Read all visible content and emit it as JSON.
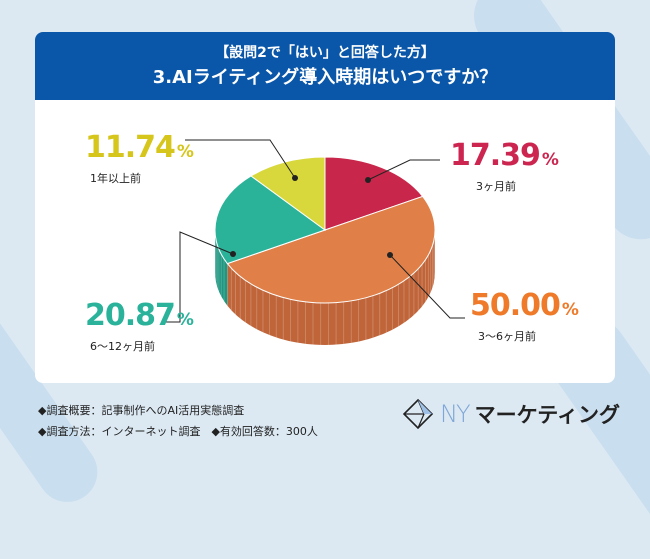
{
  "header": {
    "subtitle": "【設問2で「はい」と回答した方】",
    "title": "3.AIライティング導入時期はいつですか？"
  },
  "chart_data": {
    "type": "pie",
    "title": "3.AIライティング導入時期はいつですか？",
    "start": "top",
    "direction": "clockwise",
    "slices": [
      {
        "label": "3ヶ月前",
        "value": 17.39,
        "display": "17.39",
        "color": "#c8264a",
        "side": "#a01d3b",
        "text_color": "#cc2550"
      },
      {
        "label": "3〜6ヶ月前",
        "value": 50.0,
        "display": "50.00",
        "color": "#e08048",
        "side": "#c0653a",
        "text_color": "#ee7a2a"
      },
      {
        "label": "6〜12ヶ月前",
        "value": 20.87,
        "display": "20.87",
        "color": "#2bb39a",
        "side": "#1f9680",
        "text_color": "#2ab39a"
      },
      {
        "label": "1年以上前",
        "value": 11.74,
        "display": "11.74",
        "color": "#d8d83c",
        "side": "#b5b52e",
        "text_color": "#d6c51a"
      }
    ],
    "unit": "%"
  },
  "footer": {
    "line1": "◆調査概要：記事制作へのAI活用実態調査",
    "line2": "◆調査方法：インターネット調査　◆有効回答数：300人"
  },
  "logo": {
    "ny": "NY",
    "name": "マーケティング"
  }
}
